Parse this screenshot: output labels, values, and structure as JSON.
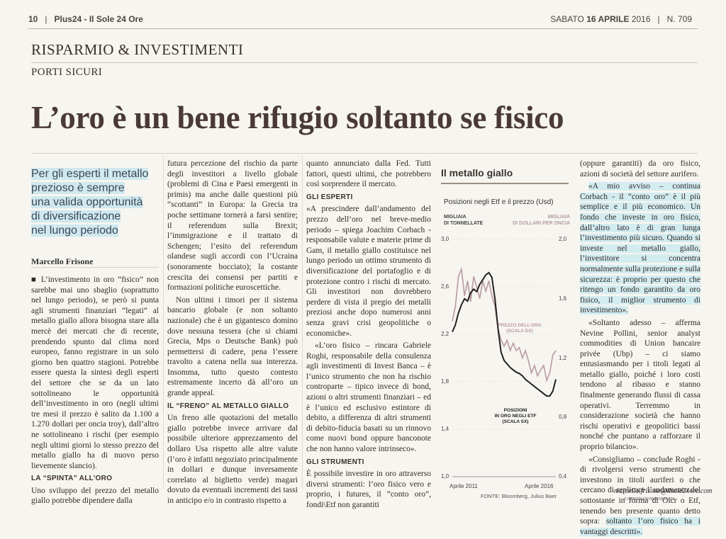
{
  "topbar": {
    "page_number": "10",
    "publication": "Plus24 - Il Sole 24 Ore",
    "date_prefix": "SABATO",
    "date_bold": "16 APRILE",
    "date_year": "2016",
    "issue": "N. 709"
  },
  "section": "RISPARMIO & INVESTIMENTI",
  "subsection": "PORTI SICURI",
  "headline": "L’oro è un bene rifugio soltanto se fisico",
  "deck": [
    "Per gli esperti il metallo",
    "prezioso è sempre",
    "una valida opportunità",
    "di diversificazione",
    "nel lungo periodo"
  ],
  "byline": "Marcello Frisone",
  "col1": {
    "p1": "L’investimento in oro “fisico” non sarebbe mai uno sbaglio (soprattutto nel lungo periodo), se però si punta agli strumenti finanziari “legati” al metallo giallo allora bisogna stare alla mercè dei mercati che di recente, prendendo spunto dal clima nord europeo, fanno registrare in un solo giorno ben quattro stagioni. Potrebbe essere questa la sintesi degli esperti del settore che se da un lato sottolineano le opportunità dell’investimento in oro (negli ultimi tre mesi il prezzo è salito da 1.100 a 1.270 dollari per oncia troy), dall’altro ne sottolineano i rischi (per esempio negli ultimi giorni lo stesso prezzo del metallo giallo ha di nuovo perso lievemente slancio).",
    "subhead": "LA “SPINTA” ALL’ORO",
    "p2": "Uno sviluppo del prezzo del metallo giallo potrebbe dipendere dalla"
  },
  "col2": {
    "p1": "futura percezione del rischio da parte degli investitori a livello globale (problemi di Cina e Paesi emergenti in primis) ma anche dalle questioni più “scottanti” in Europa: la Grecia tra poche settimane tornerà a farsi sentire; il referendum sulla Brexit; l’immigrazione e il trattato di Schengen; l’esito del referendum olandese sugli accordi con l’Ucraina (sonoramente bocciato); la costante crescita dei consensi per partiti e formazioni politiche euroscettiche.",
    "p2": "Non ultimi i timori per il sistema bancario globale (e non soltanto nazionale) che è un gigantesco domino dove nessuna tessera (che si chiami Grecia, Mps o Deutsche Bank) può permettersi di cadere, pena l’essere travolto a catena nella sua interezza. Insomma, tutto questo contesto estremamente incerto dà all’oro un grande appeal.",
    "subhead": "IL “FRENO” AL METALLO GIALLO",
    "p3": "Un freno alle quotazioni del metallo giallo potrebbe invece arrivare dal possibile ulteriore apprezzamento del dollaro Usa rispetto alle altre valute (l’oro è infatti negoziato principalmente in dollari e dunque inversamente correlato al biglietto verde) magari dovuto da eventuali incrementi dei tassi in anticipo e/o in contrasto rispetto a"
  },
  "col3": {
    "p1": "quanto annunciato dalla Fed. Tutti fattori, questi ultimi, che potrebbero così sorprendere il mercato.",
    "subhead1": "GLI ESPERTI",
    "p2": "«A prescindere dall’andamento del prezzo dell’oro nel breve-medio periodo – spiega Joachim Corbach - responsabile valute e materie prime di Gam, il metallo giallo costituisce nel lungo periodo un ottimo strumento di diversificazione del portafoglio e di protezione contro i rischi di mercato. Gli investitori non dovrebbero perdere di vista il pregio dei metalli preziosi anche dopo numerosi anni senza gravi crisi geopolitiche o economiche».",
    "p3": "«L’oro fisico – rincara Gabriele Roghi, responsabile della consulenza agli investimenti di Invest Banca – è l’unico strumento che non ha rischio controparte – tipico invece di bond, azioni o altri strumenti finanziari – ed è l’unico ed esclusivo estintore di debito, a differenza di altri strumenti di debito-fiducia basati su un rinnovo come nuovi bond oppure banconote che non hanno valore intrinseco».",
    "subhead2": "GLI STRUMENTI",
    "p4": "È possibile investire in oro attraverso diversi strumenti: l’oro fisico vero e proprio, i futures, il “conto oro”, fondi\\Etf non garantiti"
  },
  "col5": {
    "p1": "(oppure garantiti) da oro fisico, azioni di società del settore aurifero.",
    "p2_a": "«A mio avviso – continua Corbach - il “conto oro” è il più semplice e il più economico. Un fondo che investe in oro fisico, dall’altro lato è di gran lunga l’investimento più sicuro. Quando si investe nel metallo giallo, l’investitore si concentra normalmente sulla protezione e sulla sicurezza: è proprio per questo che ritengo un fondo garantito da oro fisico, il miglior strumento di investimento».",
    "p3": "«Soltanto adesso – afferma Nevine Pollini, senior analyst commodities di Union bancaire privée (Ubp) – ci siamo entusiasmando per i titoli legati al metallo giallo, poiché i loro costi tendono al ribasso e stanno finalmente generando flussi di cassa operativi. Terremmo in considerazione società che hanno rischi operativi e geopolitici bassi nonché che puntano a rafforzare il proprio bilancio».",
    "p4_a": "«Consigliamo – conclude Roghi - di rivolgersi verso strumenti che investono in titoli auriferi o che cercano di replicare l’andamento del sottostante in forma di Oicr o Etf, tenendo ben presente quanto detto sopra: ",
    "p4_b": "soltanto l’oro fisico ha i vantaggi descritti»."
  },
  "signature": "marcello.frisone@ilsole24ore.com",
  "reproduction": "© RIPRODUZIONE RISERVATA",
  "chart_data": {
    "type": "line",
    "title": "Il metallo giallo",
    "subtitle": "Posizioni negli Etf e il prezzo (Usd)",
    "left_axis_label": "MIGLIAIA DI TONNELLATE",
    "right_axis_label": "MIGLIAIA DI DOLLARI PER ONCIA",
    "left_ticks": [
      "3,0",
      "2,6",
      "2,2",
      "1,8",
      "1,4",
      "1,0"
    ],
    "right_ticks": [
      "2,0",
      "1,6",
      "1,2",
      "0,8",
      "0,4"
    ],
    "ylim_left": [
      1.0,
      3.0
    ],
    "ylim_right": [
      0.4,
      2.0
    ],
    "x_labels": [
      "Aprile 2011",
      "Aprile 2016"
    ],
    "source": "FONTE: Bloomberg, Julius Baer",
    "colors": {
      "price": "#b89aa3",
      "positions": "#222222"
    },
    "series": [
      {
        "name": "PREZZO DELL’ORO (SCALA DX)",
        "axis": "right",
        "values": [
          1.45,
          1.55,
          1.75,
          1.8,
          1.62,
          1.72,
          1.58,
          1.75,
          1.68,
          1.6,
          1.72,
          1.65,
          1.72,
          1.62,
          1.55,
          1.4,
          1.32,
          1.28,
          1.32,
          1.25,
          1.3,
          1.25,
          1.27,
          1.2,
          1.25,
          1.18,
          1.1,
          1.15,
          1.08,
          1.12,
          1.15,
          1.05,
          1.1,
          1.22,
          1.25
        ]
      },
      {
        "name": "POSIZIONI IN ORO NEGLI ETF (SCALA SX)",
        "axis": "left",
        "values": [
          2.22,
          2.28,
          2.38,
          2.45,
          2.5,
          2.48,
          2.55,
          2.58,
          2.56,
          2.62,
          2.66,
          2.7,
          2.72,
          2.68,
          2.5,
          2.25,
          2.05,
          1.98,
          1.95,
          1.92,
          1.9,
          1.88,
          1.87,
          1.85,
          1.82,
          1.8,
          1.78,
          1.76,
          1.74,
          1.72,
          1.7,
          1.68,
          1.68,
          1.72,
          1.82
        ]
      }
    ]
  }
}
